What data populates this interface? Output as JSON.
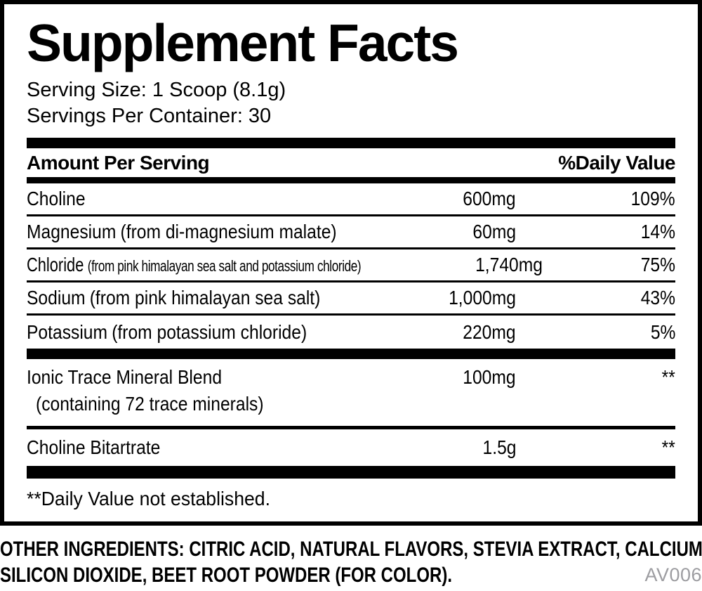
{
  "label": {
    "title": "Supplement Facts",
    "serving_size": "Serving Size: 1 Scoop (8.1g)",
    "servings_per_container": "Servings Per Container: 30",
    "header": {
      "amount": "Amount Per Serving",
      "daily_value": "%Daily Value"
    },
    "rows": [
      {
        "name": "Choline",
        "detail": "",
        "amount": "600mg",
        "dv": "109%"
      },
      {
        "name": "Magnesium",
        "detail": "(from di-magnesium malate)",
        "amount": "60mg",
        "dv": "14%"
      },
      {
        "name": "Chloride",
        "detail": "(from pink himalayan sea salt and potassium chloride)",
        "amount": "1,740mg",
        "dv": "75%"
      },
      {
        "name": "Sodium",
        "detail": "(from pink himalayan sea salt)",
        "amount": "1,000mg",
        "dv": "43%"
      },
      {
        "name": "Potassium",
        "detail": "(from potassium chloride)",
        "amount": "220mg",
        "dv": "5%"
      },
      {
        "name": "Ionic Trace Mineral Blend",
        "sub": "(containing 72 trace minerals)",
        "amount": "100mg",
        "dv": "**"
      },
      {
        "name": "Choline Bitartrate",
        "detail": "",
        "amount": "1.5g",
        "dv": "**"
      }
    ],
    "footnote": "**Daily Value not established."
  },
  "other_ingredients": {
    "line1": "OTHER INGREDIENTS: CITRIC ACID, NATURAL FLAVORS, STEVIA EXTRACT, CALCIUM SILICATE,",
    "line2": "SILICON DIOXIDE, BEET ROOT POWDER (FOR COLOR)."
  },
  "product_code": "AV006",
  "colors": {
    "ink": "#000000",
    "background": "#ffffff",
    "code_gray": "#9d9da1"
  }
}
